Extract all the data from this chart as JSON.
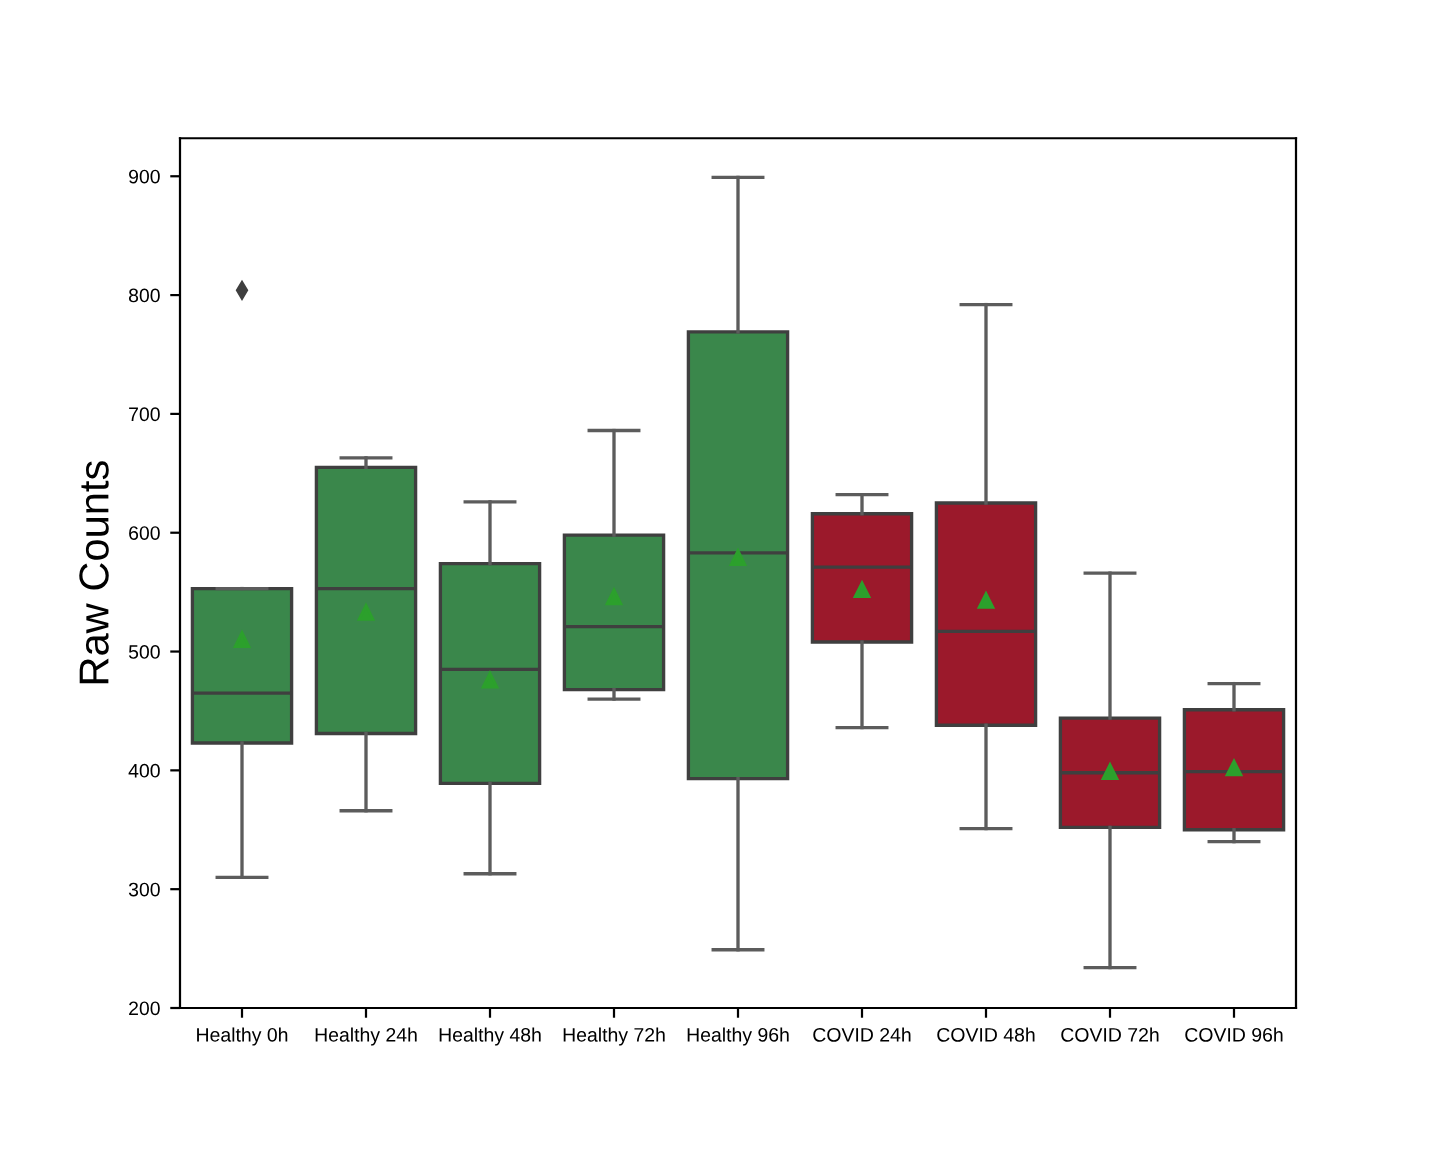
{
  "chart_data": {
    "type": "box",
    "ylabel": "Raw Counts",
    "categories": [
      "Healthy 0h",
      "Healthy 24h",
      "Healthy 48h",
      "Healthy 72h",
      "Healthy 96h",
      "COVID 24h",
      "COVID 48h",
      "COVID 72h",
      "COVID 96h"
    ],
    "colors": [
      "#3a874b",
      "#3a874b",
      "#3a874b",
      "#3a874b",
      "#3a874b",
      "#9b192b",
      "#9b192b",
      "#9b192b",
      "#9b192b"
    ],
    "boxes": [
      {
        "low": 310,
        "q1": 423,
        "median": 465,
        "q3": 553,
        "high": 553,
        "mean": 510,
        "outliers": [
          804
        ]
      },
      {
        "low": 366,
        "q1": 431,
        "median": 553,
        "q3": 655,
        "high": 663,
        "mean": 533
      },
      {
        "low": 313,
        "q1": 389,
        "median": 485,
        "q3": 574,
        "high": 626,
        "mean": 476
      },
      {
        "low": 460,
        "q1": 468,
        "median": 521,
        "q3": 598,
        "high": 686,
        "mean": 546
      },
      {
        "low": 249,
        "q1": 393,
        "median": 583,
        "q3": 769,
        "high": 899,
        "mean": 579
      },
      {
        "low": 436,
        "q1": 508,
        "median": 571,
        "q3": 616,
        "high": 632,
        "mean": 552
      },
      {
        "low": 351,
        "q1": 438,
        "median": 517,
        "q3": 625,
        "high": 792,
        "mean": 543
      },
      {
        "low": 234,
        "q1": 352,
        "median": 398,
        "q3": 444,
        "high": 566,
        "mean": 399
      },
      {
        "low": 340,
        "q1": 350,
        "median": 399,
        "q3": 451,
        "high": 473,
        "mean": 402
      }
    ],
    "ylim": [
      200,
      932
    ],
    "yticks": [
      200,
      300,
      400,
      500,
      600,
      700,
      800,
      900
    ]
  }
}
